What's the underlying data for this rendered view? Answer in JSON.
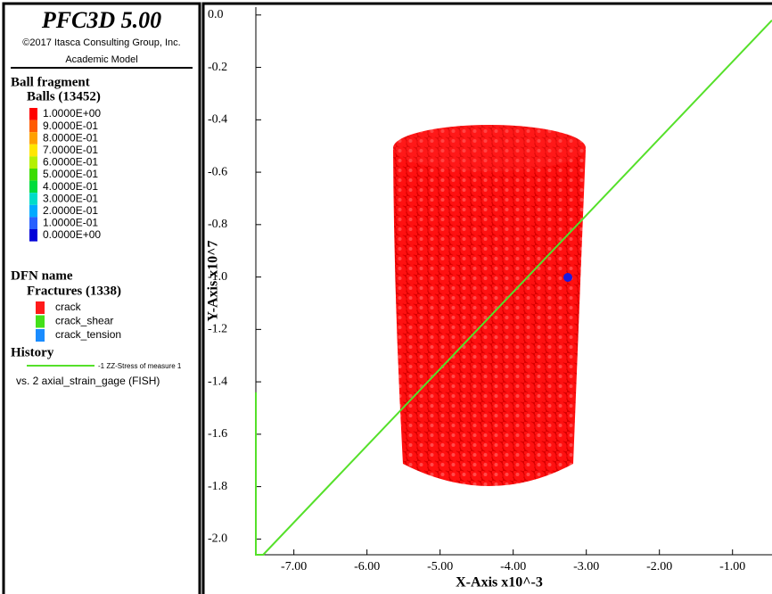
{
  "legend": {
    "title": "PFC3D 5.00",
    "copyright": "©2017 Itasca Consulting Group, Inc.",
    "model": "Academic Model",
    "ball_group": "Ball fragment",
    "balls": "Balls (13452)",
    "color_scale": [
      {
        "label": "1.0000E+00",
        "color": "#ff0000"
      },
      {
        "label": "9.0000E-01",
        "color": "#ff5a00"
      },
      {
        "label": "8.0000E-01",
        "color": "#ffa000"
      },
      {
        "label": "7.0000E-01",
        "color": "#ffe600"
      },
      {
        "label": "6.0000E-01",
        "color": "#b4f000"
      },
      {
        "label": "5.0000E-01",
        "color": "#3cdc00"
      },
      {
        "label": "4.0000E-01",
        "color": "#00dc3c"
      },
      {
        "label": "3.0000E-01",
        "color": "#00dcc8"
      },
      {
        "label": "2.0000E-01",
        "color": "#00aaff"
      },
      {
        "label": "1.0000E-01",
        "color": "#2860ff"
      },
      {
        "label": "0.0000E+00",
        "color": "#0000d8"
      }
    ],
    "dfn": "DFN name",
    "fractures": "Fractures (1338)",
    "fracture_types": [
      {
        "label": "crack",
        "color": "#ff1a1a"
      },
      {
        "label": "crack_shear",
        "color": "#44e01a"
      },
      {
        "label": "crack_tension",
        "color": "#1a8cff"
      }
    ],
    "history": "History",
    "history_line": "-1 ZZ-Stress of measure 1",
    "history_vs": "vs. 2 axial_strain_gage (FISH)",
    "history_color": "#55e02a"
  },
  "plot": {
    "x_label": "X-Axis x10^-3",
    "y_label": "Y-Axis x10^7",
    "xlim": [
      -7.52,
      -0.46
    ],
    "ylim": [
      -2.06,
      0.03
    ],
    "xticks": [
      {
        "value": -7,
        "label": "-7.00"
      },
      {
        "value": -6,
        "label": "-6.00"
      },
      {
        "value": -5,
        "label": "-5.00"
      },
      {
        "value": -4,
        "label": "-4.00"
      },
      {
        "value": -3,
        "label": "-3.00"
      },
      {
        "value": -2,
        "label": "-2.00"
      },
      {
        "value": -1,
        "label": "-1.00"
      }
    ],
    "yticks": [
      {
        "value": 0,
        "label": "0.0"
      },
      -0.2,
      -0.4,
      -0.6,
      -0.8,
      {
        "value": -1,
        "label": "-1.0"
      },
      -1.2,
      -1.4,
      -1.6,
      -1.8,
      {
        "value": -2,
        "label": "-2.0"
      }
    ],
    "series": [
      {
        "name": "-1 ZZ-Stress of measure 1",
        "color": "#55e02a",
        "x": [
          -7.52,
          -7.52,
          -7.42,
          -0.46
        ],
        "values": [
          -1.44,
          -2.06,
          -2.06,
          -0.02
        ]
      }
    ]
  }
}
